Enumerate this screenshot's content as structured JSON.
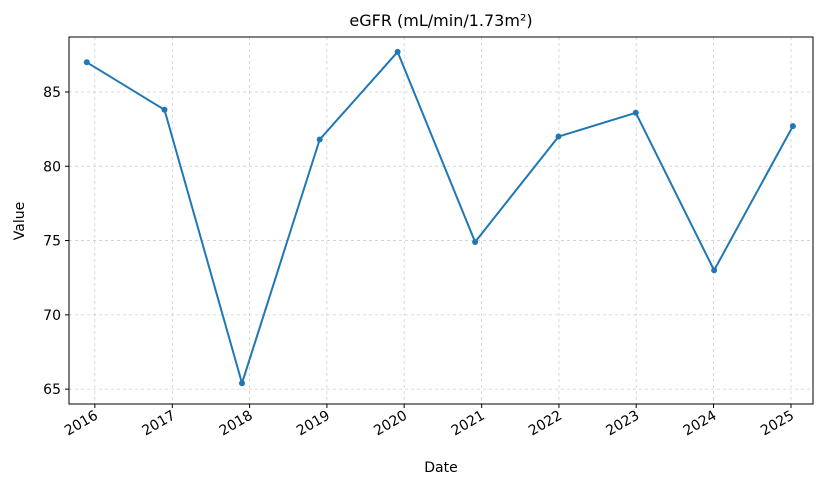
{
  "chart_data": {
    "type": "line",
    "title": "eGFR (mL/min/1.73m²)",
    "xlabel": "Date",
    "ylabel": "Value",
    "x_ticks": [
      "2016",
      "2017",
      "2018",
      "2019",
      "2020",
      "2021",
      "2022",
      "2023",
      "2024",
      "2025"
    ],
    "y_ticks": [
      65,
      70,
      75,
      80,
      85
    ],
    "ylim": [
      64,
      88.7
    ],
    "xlim": [
      "2015-09-01",
      "2025-04-15"
    ],
    "grid": true,
    "series": [
      {
        "color": "#1f77b4",
        "marker": "circle",
        "points": [
          {
            "x": "2015-11-24",
            "y": 87.0
          },
          {
            "x": "2016-11-25",
            "y": 83.8
          },
          {
            "x": "2017-11-26",
            "y": 65.4
          },
          {
            "x": "2018-11-28",
            "y": 81.8
          },
          {
            "x": "2019-12-01",
            "y": 87.7
          },
          {
            "x": "2020-12-01",
            "y": 74.9
          },
          {
            "x": "2021-12-30",
            "y": 82.0
          },
          {
            "x": "2022-12-30",
            "y": 83.6
          },
          {
            "x": "2024-01-04",
            "y": 73.0
          },
          {
            "x": "2025-01-10",
            "y": 82.7
          }
        ]
      }
    ]
  }
}
